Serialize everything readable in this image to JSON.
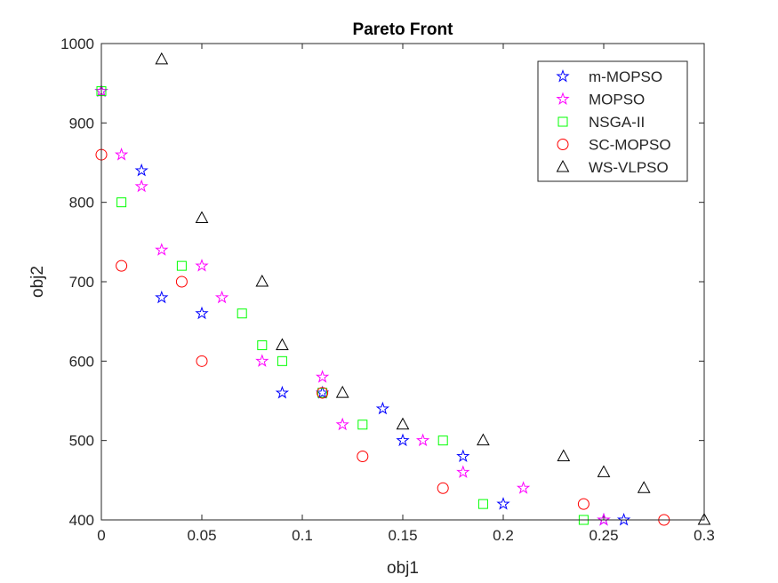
{
  "chart_data": {
    "type": "scatter",
    "title": "Pareto Front",
    "xlabel": "obj1",
    "ylabel": "obj2",
    "xlim": [
      0,
      0.3
    ],
    "ylim": [
      400,
      1000
    ],
    "xticks": [
      0,
      0.05,
      0.1,
      0.15,
      0.2,
      0.25,
      0.3
    ],
    "xtick_labels": [
      "0",
      "0.05",
      "0.1",
      "0.15",
      "0.2",
      "0.25",
      "0.3"
    ],
    "yticks": [
      400,
      500,
      600,
      700,
      800,
      900,
      1000
    ],
    "ytick_labels": [
      "400",
      "500",
      "600",
      "700",
      "800",
      "900",
      "1000"
    ],
    "grid": false,
    "legend_position": "top-right",
    "series": [
      {
        "name": "m-MOPSO",
        "marker": "star",
        "color": "#0000ff",
        "points": [
          [
            0,
            940
          ],
          [
            0.02,
            840
          ],
          [
            0.03,
            680
          ],
          [
            0.05,
            660
          ],
          [
            0.09,
            560
          ],
          [
            0.11,
            560
          ],
          [
            0.14,
            540
          ],
          [
            0.15,
            500
          ],
          [
            0.18,
            480
          ],
          [
            0.2,
            420
          ],
          [
            0.25,
            400
          ],
          [
            0.26,
            400
          ]
        ]
      },
      {
        "name": "MOPSO",
        "marker": "star",
        "color": "#ff00ff",
        "points": [
          [
            0,
            940
          ],
          [
            0.01,
            860
          ],
          [
            0.02,
            820
          ],
          [
            0.03,
            740
          ],
          [
            0.05,
            720
          ],
          [
            0.06,
            680
          ],
          [
            0.08,
            600
          ],
          [
            0.11,
            580
          ],
          [
            0.12,
            520
          ],
          [
            0.16,
            500
          ],
          [
            0.18,
            460
          ],
          [
            0.21,
            440
          ],
          [
            0.25,
            400
          ]
        ]
      },
      {
        "name": "NSGA-II",
        "marker": "square",
        "color": "#00ff00",
        "points": [
          [
            0,
            940
          ],
          [
            0.01,
            800
          ],
          [
            0.04,
            720
          ],
          [
            0.07,
            660
          ],
          [
            0.08,
            620
          ],
          [
            0.09,
            600
          ],
          [
            0.11,
            560
          ],
          [
            0.13,
            520
          ],
          [
            0.17,
            500
          ],
          [
            0.19,
            420
          ],
          [
            0.24,
            400
          ]
        ]
      },
      {
        "name": "SC-MOPSO",
        "marker": "circle",
        "color": "#ff0000",
        "points": [
          [
            0,
            860
          ],
          [
            0.01,
            720
          ],
          [
            0.04,
            700
          ],
          [
            0.05,
            600
          ],
          [
            0.11,
            560
          ],
          [
            0.13,
            480
          ],
          [
            0.17,
            440
          ],
          [
            0.24,
            420
          ],
          [
            0.28,
            400
          ]
        ]
      },
      {
        "name": "WS-VLPSO",
        "marker": "triangle",
        "color": "#000000",
        "points": [
          [
            0.03,
            980
          ],
          [
            0.05,
            780
          ],
          [
            0.08,
            700
          ],
          [
            0.09,
            620
          ],
          [
            0.12,
            560
          ],
          [
            0.15,
            520
          ],
          [
            0.19,
            500
          ],
          [
            0.23,
            480
          ],
          [
            0.25,
            460
          ],
          [
            0.27,
            440
          ],
          [
            0.3,
            400
          ]
        ]
      }
    ]
  }
}
